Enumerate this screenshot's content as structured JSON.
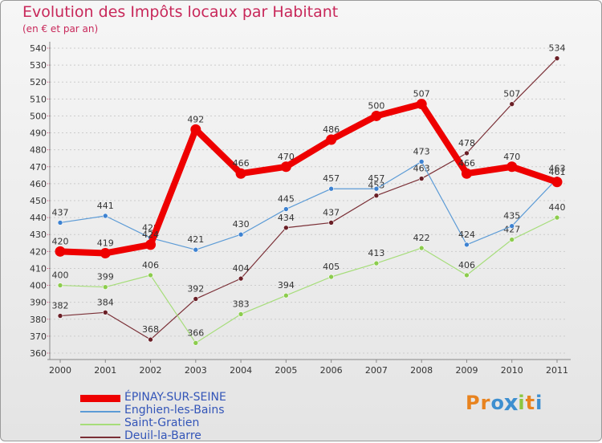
{
  "title": "Evolution des Impôts locaux par Habitant",
  "subtitle": "(en € et par an)",
  "brand": "Proxiti",
  "colors": {
    "title": "#c8285a",
    "axis": "#888888",
    "grid": "#cccccc",
    "labels": "#333333",
    "legend_text": "#3355b8",
    "brand_letters": [
      "#e8831f",
      "#e8831f",
      "#3d8fd0",
      "#3d8fd0",
      "#8cc63f",
      "#e8831f",
      "#3d8fd0"
    ]
  },
  "chart_data": {
    "type": "line",
    "title": "Evolution des Impôts locaux par Habitant",
    "subtitle": "(en € et par an)",
    "x": [
      "2000",
      "2001",
      "2002",
      "2003",
      "2004",
      "2005",
      "2006",
      "2007",
      "2008",
      "2009",
      "2010",
      "2011"
    ],
    "ylim": [
      360,
      540
    ],
    "yticks": [
      360,
      370,
      380,
      390,
      400,
      410,
      420,
      430,
      440,
      450,
      460,
      470,
      480,
      490,
      500,
      510,
      520,
      530,
      540
    ],
    "grid": "dashed horizontal",
    "legend_position": "bottom-left",
    "series": [
      {
        "name": "ÉPINAY-SUR-SEINE",
        "color": "#ee0000",
        "emphasis": true,
        "values": [
          420,
          419,
          424,
          492,
          466,
          470,
          486,
          500,
          507,
          466,
          470,
          461
        ],
        "labels": [
          "420",
          "419",
          "424",
          "492",
          "466",
          "470",
          "486",
          "500",
          "507",
          "466",
          "470",
          "461"
        ]
      },
      {
        "name": "Enghien-les-Bains",
        "color": "#5c9bd6",
        "marker": "#3d82d1",
        "values": [
          437,
          441,
          428,
          421,
          430,
          445,
          457,
          457,
          473,
          424,
          435,
          463
        ],
        "labels": [
          "437",
          "441",
          "428",
          "421",
          "430",
          "445",
          "457",
          "457",
          "473",
          "424",
          "435",
          "463"
        ]
      },
      {
        "name": "Saint-Gratien",
        "color": "#a6dd7a",
        "marker": "#8ccc4d",
        "values": [
          400,
          399,
          406,
          366,
          383,
          394,
          405,
          413,
          422,
          406,
          427,
          440
        ],
        "labels": [
          "400",
          "399",
          "406",
          "366",
          "383",
          "394",
          "405",
          "413",
          "422",
          "406",
          "427",
          "440"
        ]
      },
      {
        "name": "Deuil-la-Barre",
        "color": "#7a2f36",
        "marker": "#6a1f26",
        "values": [
          382,
          384,
          368,
          392,
          404,
          434,
          437,
          453,
          463,
          478,
          507,
          534
        ],
        "labels": [
          "382",
          "384",
          "368",
          "392",
          "404",
          "434",
          "437",
          "453",
          "463",
          "478",
          "507",
          "534"
        ]
      }
    ]
  }
}
